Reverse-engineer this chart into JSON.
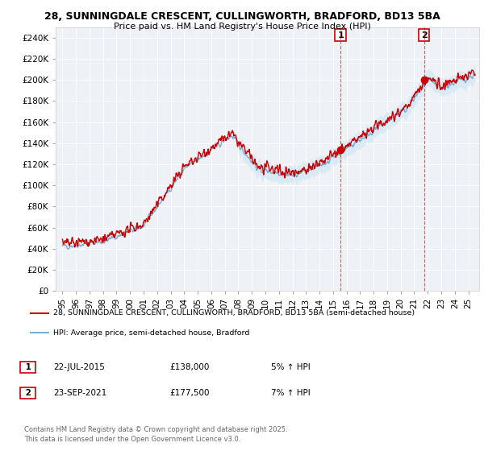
{
  "title_line1": "28, SUNNINGDALE CRESCENT, CULLINGWORTH, BRADFORD, BD13 5BA",
  "title_line2": "Price paid vs. HM Land Registry's House Price Index (HPI)",
  "ylabel_ticks": [
    "£0",
    "£20K",
    "£40K",
    "£60K",
    "£80K",
    "£100K",
    "£120K",
    "£140K",
    "£160K",
    "£180K",
    "£200K",
    "£220K",
    "£240K"
  ],
  "ytick_values": [
    0,
    20000,
    40000,
    60000,
    80000,
    100000,
    120000,
    140000,
    160000,
    180000,
    200000,
    220000,
    240000
  ],
  "ylim": [
    0,
    250000
  ],
  "xlim_start": 1994.5,
  "xlim_end": 2025.8,
  "xtick_years": [
    1995,
    1996,
    1997,
    1998,
    1999,
    2000,
    2001,
    2002,
    2003,
    2004,
    2005,
    2006,
    2007,
    2008,
    2009,
    2010,
    2011,
    2012,
    2013,
    2014,
    2015,
    2016,
    2017,
    2018,
    2019,
    2020,
    2021,
    2022,
    2023,
    2024,
    2025
  ],
  "xtick_labels": [
    "95",
    "96",
    "97",
    "98",
    "99",
    "00",
    "01",
    "02",
    "03",
    "04",
    "05",
    "06",
    "07",
    "08",
    "09",
    "10",
    "11",
    "12",
    "13",
    "14",
    "15",
    "16",
    "17",
    "18",
    "19",
    "20",
    "21",
    "22",
    "23",
    "24",
    "25"
  ],
  "sale1_x": 2015.55,
  "sale1_y": 138000,
  "sale1_label": "1",
  "sale2_x": 2021.72,
  "sale2_y": 177500,
  "sale2_label": "2",
  "red_color": "#cc0000",
  "blue_color": "#7bafd4",
  "blue_fill_color": "#d6e8f5",
  "legend_line1": "28, SUNNINGDALE CRESCENT, CULLINGWORTH, BRADFORD, BD13 5BA (semi-detached house)",
  "legend_line2": "HPI: Average price, semi-detached house, Bradford",
  "note1_date": "22-JUL-2015",
  "note1_price": "£138,000",
  "note1_hpi": "5% ↑ HPI",
  "note2_date": "23-SEP-2021",
  "note2_price": "£177,500",
  "note2_hpi": "7% ↑ HPI",
  "footer": "Contains HM Land Registry data © Crown copyright and database right 2025.\nThis data is licensed under the Open Government Licence v3.0.",
  "bg_color": "#ffffff",
  "plot_bg_color": "#eef2f7",
  "grid_color": "#ffffff"
}
